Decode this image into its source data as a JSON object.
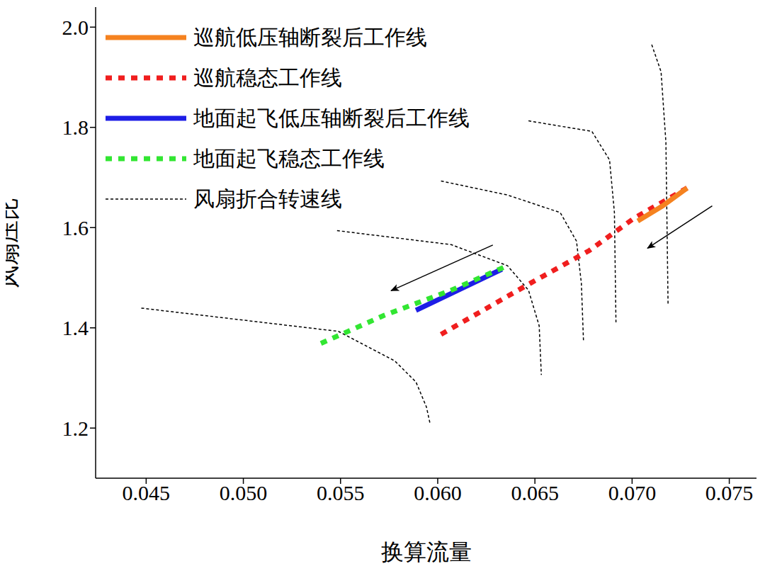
{
  "chart_data": {
    "type": "line",
    "x_label": "换算流量",
    "y_label": "风扇压比",
    "xlim": [
      0.0424,
      0.0764
    ],
    "xticks": [
      0.045,
      {
        "value": 0.05,
        "label": "0.050"
      },
      0.055,
      {
        "value": 0.06,
        "label": "0.060"
      },
      0.065,
      {
        "value": 0.07,
        "label": "0.070"
      },
      0.075
    ],
    "ylim": [
      1.1,
      2.04
    ],
    "yticks": [
      1.2,
      1.4,
      1.6,
      1.8,
      {
        "value": 2,
        "label": "2.0"
      }
    ],
    "grid": false,
    "legend": "top-left",
    "series": [
      {
        "name": "巡航低压轴断裂后工作线",
        "color": "#f5821f",
        "line_style": "solid",
        "x": [
          0.07029,
          0.07156,
          0.07283
        ],
        "values": [
          1.613,
          1.643,
          1.679
        ]
      },
      {
        "name": "巡航稳态工作线",
        "color": "#f01e1e",
        "line_style": "dotted",
        "x": [
          0.06017,
          0.06481,
          0.06779,
          0.07011,
          0.07283
        ],
        "values": [
          1.387,
          1.49,
          1.554,
          1.619,
          1.679
        ]
      },
      {
        "name": "地面起飞低压轴断裂后工作线",
        "color": "#1e1ee6",
        "line_style": "solid",
        "x": [
          0.05888,
          0.06105,
          0.0633
        ],
        "values": [
          1.435,
          1.475,
          1.517
        ]
      },
      {
        "name": "地面起飞稳态工作线",
        "color": "#32e632",
        "line_style": "dotted",
        "x": [
          0.05399,
          0.05725,
          0.06069,
          0.06359
        ],
        "values": [
          1.369,
          1.425,
          1.475,
          1.524
        ]
      },
      {
        "name": "风扇折合转速线",
        "color": "#000000",
        "line_style": "dashed",
        "curves": [
          {
            "x": [
              0.04475,
              0.05489,
              0.05779,
              0.05888,
              0.05942,
              0.0596
            ],
            "values": [
              1.4394,
              1.393,
              1.334,
              1.292,
              1.242,
              1.21
            ]
          },
          {
            "x": [
              0.05482,
              0.06069,
              0.06359,
              0.06467,
              0.06522,
              0.06533
            ],
            "values": [
              1.594,
              1.566,
              1.524,
              1.475,
              1.404,
              1.306
            ]
          },
          {
            "x": [
              0.06017,
              0.06359,
              0.0663,
              0.06714,
              0.06739,
              0.0675
            ],
            "values": [
              1.693,
              1.665,
              1.63,
              1.573,
              1.489,
              1.373
            ]
          },
          {
            "x": [
              0.06467,
              0.06793,
              0.06884,
              0.06909,
              0.06917
            ],
            "values": [
              1.813,
              1.792,
              1.735,
              1.63,
              1.411
            ]
          },
          {
            "x": [
              0.07101,
              0.07149,
              0.07174,
              0.07185
            ],
            "values": [
              1.965,
              1.911,
              1.77,
              1.446
            ]
          }
        ]
      }
    ]
  }
}
